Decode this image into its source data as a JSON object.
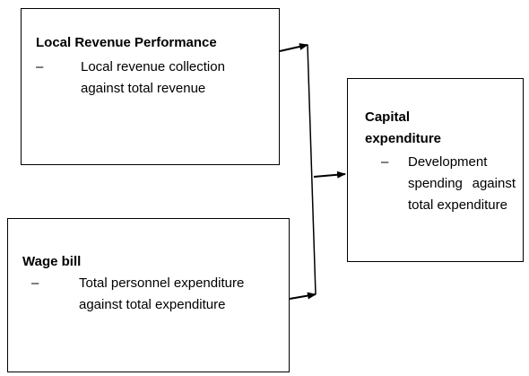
{
  "nodes": [
    {
      "title": "Local Revenue Performance",
      "items": [
        "Local revenue collection against total revenue"
      ]
    },
    {
      "title": "Wage bill",
      "items": [
        "Total personnel expenditure against total expenditure"
      ]
    },
    {
      "title": "Capital expenditure",
      "items": [
        "Development spending against total expenditure"
      ]
    }
  ]
}
